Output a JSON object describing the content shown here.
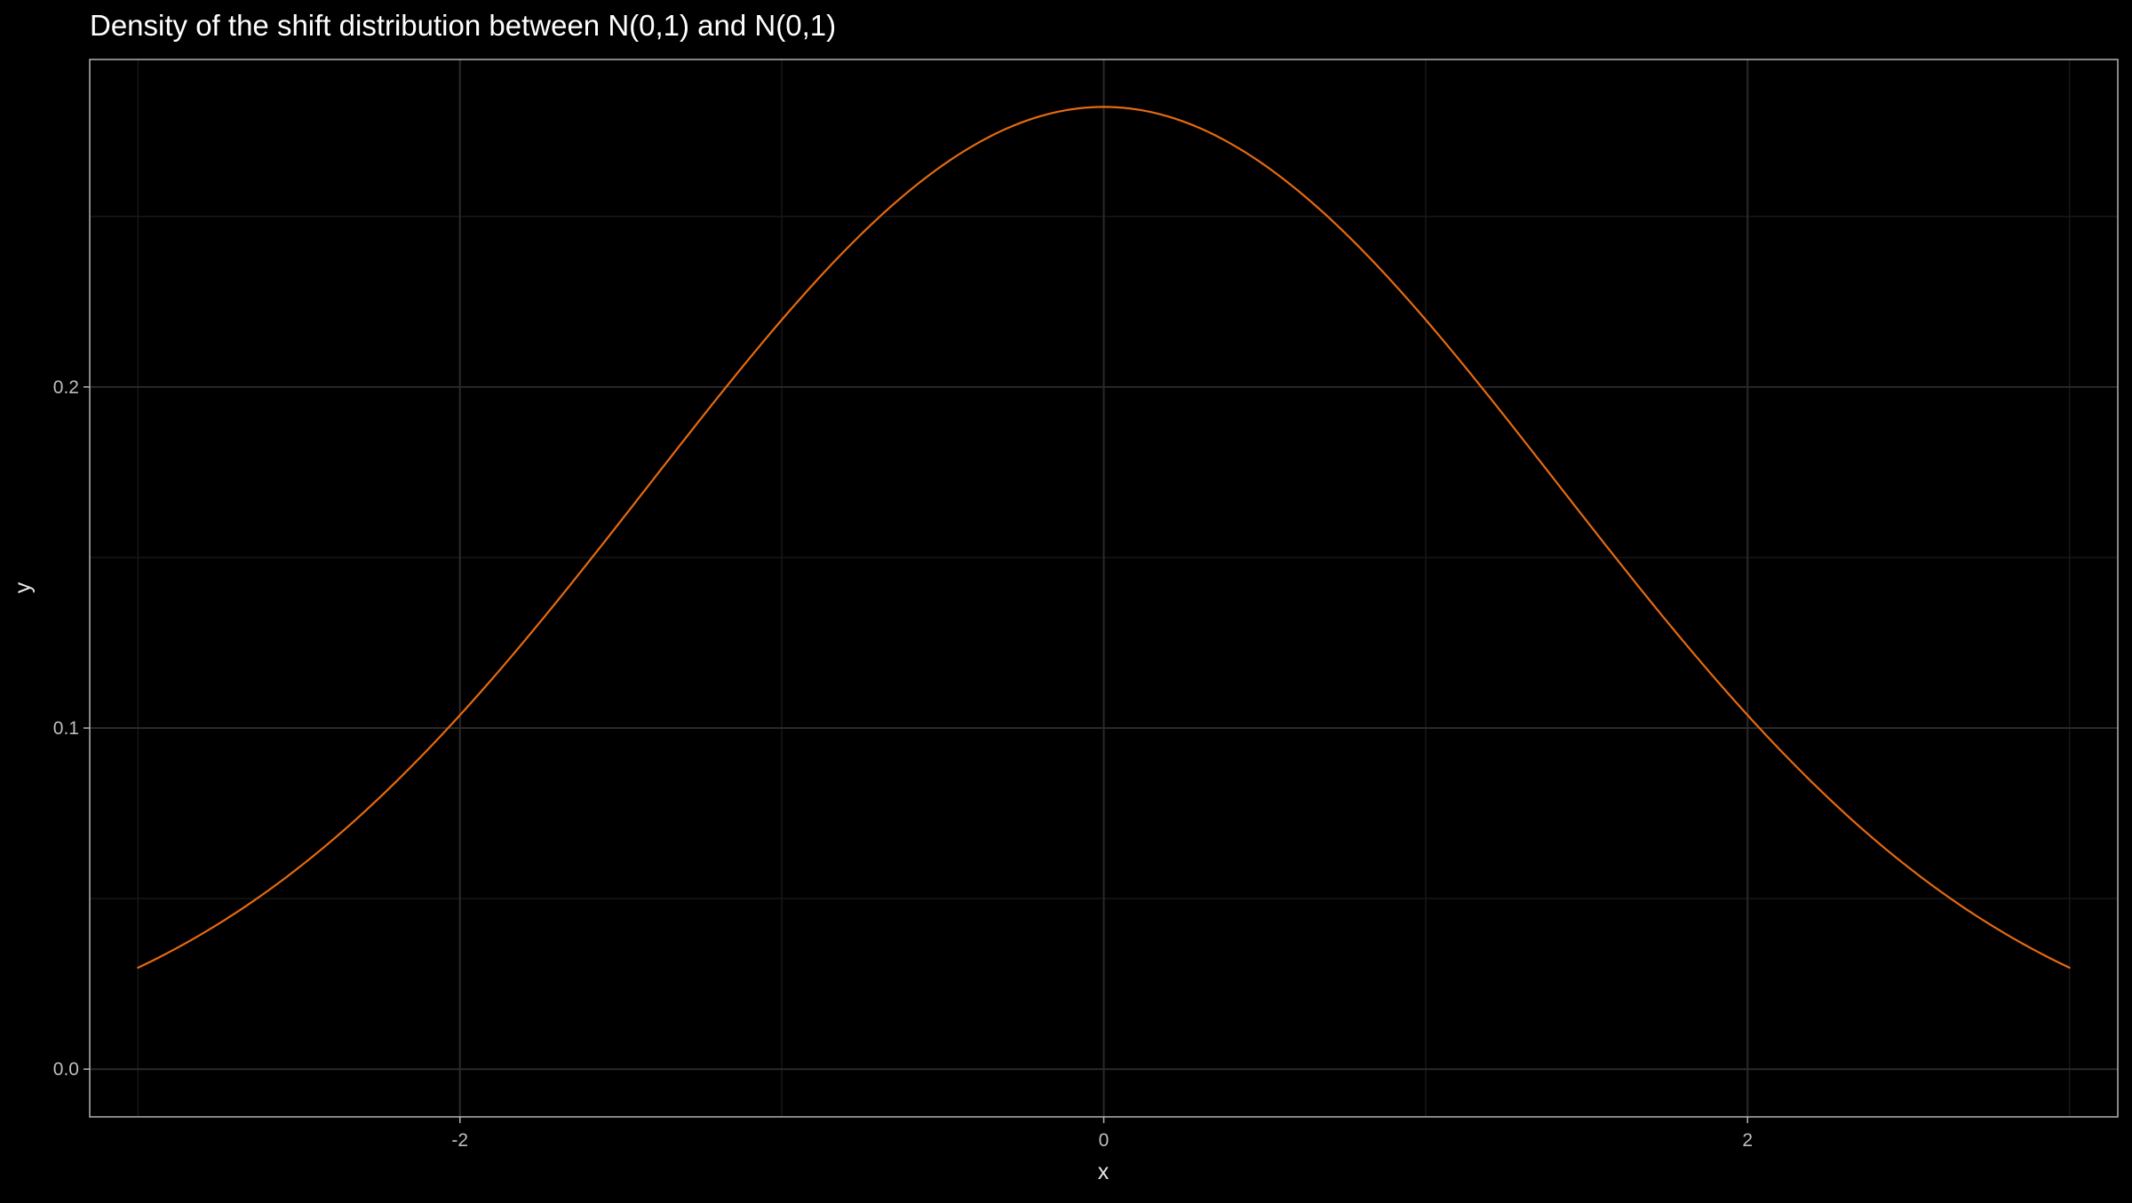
{
  "chart_data": {
    "type": "line",
    "title": "Density of the shift distribution between N(0,1) and N(0,1)",
    "xlabel": "x",
    "ylabel": "y",
    "xlim": [
      -3.15,
      3.15
    ],
    "ylim": [
      -0.014,
      0.296
    ],
    "x_ticks": [
      -2,
      0,
      2
    ],
    "x_tick_labels": [
      "-2",
      "0",
      "2"
    ],
    "x_minor_ticks": [
      -3,
      -1,
      1,
      3
    ],
    "y_ticks": [
      0.0,
      0.1,
      0.2
    ],
    "y_tick_labels": [
      "0.0",
      "0.1",
      "0.2"
    ],
    "y_minor_ticks": [
      0.05,
      0.15,
      0.25
    ],
    "grid": true,
    "legend": "none",
    "series": [
      {
        "color": "#e66a10",
        "distribution": "normal",
        "mean": 0,
        "sd": 1.4142,
        "x_range": [
          -3,
          3
        ],
        "samples": [
          {
            "x": -3,
            "y": 0.0297
          },
          {
            "x": -2,
            "y": 0.1038
          },
          {
            "x": -1,
            "y": 0.2197
          },
          {
            "x": 0,
            "y": 0.2821
          },
          {
            "x": 1,
            "y": 0.2197
          },
          {
            "x": 2,
            "y": 0.1038
          },
          {
            "x": 3,
            "y": 0.0297
          }
        ]
      }
    ]
  },
  "colors": {
    "background": "#000000",
    "panel_border": "#b3b3b3",
    "grid_major": "#2a2a2a",
    "grid_minor": "#171717",
    "line": "#e66a10",
    "text": "#ffffff",
    "tick_text": "#bfbfbf"
  }
}
